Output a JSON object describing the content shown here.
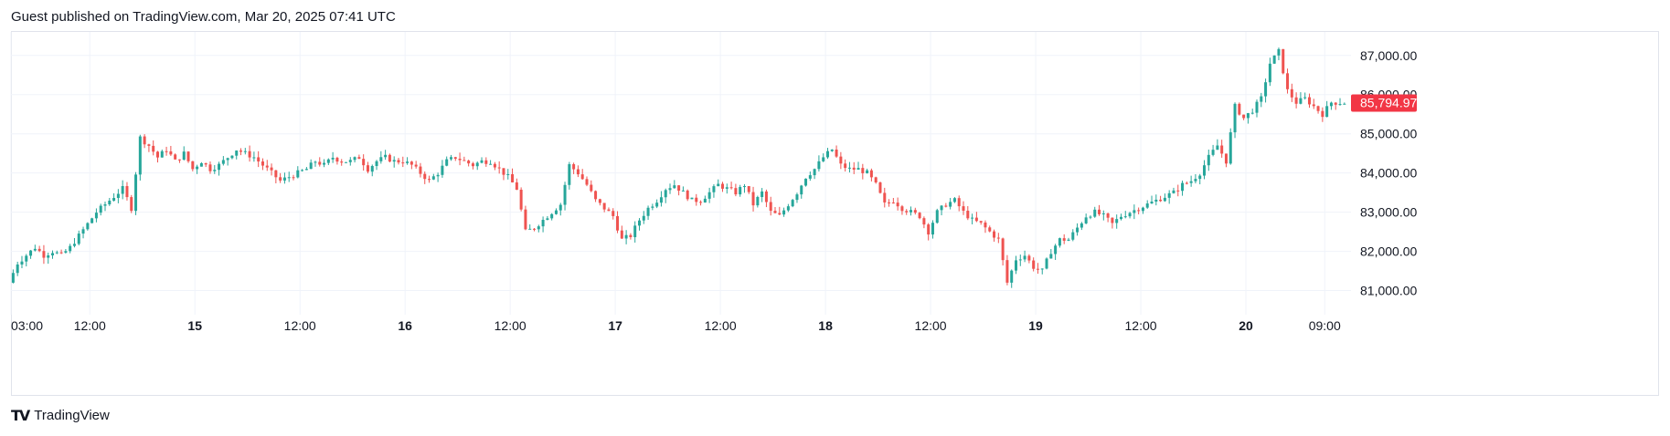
{
  "header": {
    "published": "Guest published on TradingView.com, Mar 20, 2025 07:41 UTC"
  },
  "footer": {
    "logo_glyph": "TV",
    "brand": "TradingView"
  },
  "colors": {
    "up": "#26a69a",
    "down": "#ef5350",
    "price_badge": "#f23645",
    "grid": "#f0f3fa",
    "border": "#e0e3eb"
  },
  "chart_data": {
    "type": "candlestick",
    "title": "",
    "xlabel": "",
    "ylabel": "",
    "ylim": [
      80500,
      87600
    ],
    "y_ticks": [
      "81,000.00",
      "82,000.00",
      "83,000.00",
      "84,000.00",
      "85,000.00",
      "86,000.00",
      "87,000.00"
    ],
    "y_tick_values": [
      81000,
      82000,
      83000,
      84000,
      85000,
      86000,
      87000
    ],
    "x_ticks": [
      {
        "label": "03:00",
        "t": 0,
        "bold": false
      },
      {
        "label": "12:00",
        "t": 9,
        "bold": false
      },
      {
        "label": "15",
        "t": 21,
        "bold": true
      },
      {
        "label": "12:00",
        "t": 33,
        "bold": false
      },
      {
        "label": "16",
        "t": 45,
        "bold": true
      },
      {
        "label": "12:00",
        "t": 57,
        "bold": false
      },
      {
        "label": "17",
        "t": 69,
        "bold": true
      },
      {
        "label": "12:00",
        "t": 81,
        "bold": false
      },
      {
        "label": "18",
        "t": 93,
        "bold": true
      },
      {
        "label": "12:00",
        "t": 105,
        "bold": false
      },
      {
        "label": "19",
        "t": 117,
        "bold": true
      },
      {
        "label": "12:00",
        "t": 129,
        "bold": false
      },
      {
        "label": "20",
        "t": 141,
        "bold": true
      },
      {
        "label": "09:00",
        "t": 150,
        "bold": false
      }
    ],
    "x_range_hours": [
      0,
      153
    ],
    "last_price": 85794.97,
    "last_price_label": "85,794.97",
    "close_path": [
      [
        0,
        81200
      ],
      [
        1,
        81700
      ],
      [
        2,
        81900
      ],
      [
        3,
        82100
      ],
      [
        4,
        81900
      ],
      [
        5,
        82000
      ],
      [
        6,
        81900
      ],
      [
        7,
        82100
      ],
      [
        8,
        82400
      ],
      [
        9,
        82700
      ],
      [
        10,
        83000
      ],
      [
        11,
        83200
      ],
      [
        12,
        83400
      ],
      [
        13,
        83600
      ],
      [
        14,
        83100
      ],
      [
        15,
        84900
      ],
      [
        16,
        84700
      ],
      [
        17,
        84400
      ],
      [
        18,
        84600
      ],
      [
        19,
        84300
      ],
      [
        20,
        84500
      ],
      [
        21,
        84100
      ],
      [
        22,
        84300
      ],
      [
        23,
        84100
      ],
      [
        24,
        84200
      ],
      [
        25,
        84400
      ],
      [
        26,
        84600
      ],
      [
        27,
        84500
      ],
      [
        28,
        84400
      ],
      [
        29,
        84200
      ],
      [
        30,
        84000
      ],
      [
        31,
        83800
      ],
      [
        32,
        83900
      ],
      [
        33,
        84000
      ],
      [
        34,
        84100
      ],
      [
        35,
        84300
      ],
      [
        36,
        84200
      ],
      [
        37,
        84400
      ],
      [
        38,
        84300
      ],
      [
        39,
        84300
      ],
      [
        40,
        84400
      ],
      [
        41,
        84100
      ],
      [
        42,
        84300
      ],
      [
        43,
        84400
      ],
      [
        44,
        84300
      ],
      [
        45,
        84300
      ],
      [
        46,
        84200
      ],
      [
        47,
        84000
      ],
      [
        48,
        83800
      ],
      [
        49,
        84000
      ],
      [
        50,
        84300
      ],
      [
        51,
        84400
      ],
      [
        52,
        84300
      ],
      [
        53,
        84200
      ],
      [
        54,
        84300
      ],
      [
        55,
        84300
      ],
      [
        56,
        84100
      ],
      [
        57,
        83900
      ],
      [
        58,
        83600
      ],
      [
        59,
        82500
      ],
      [
        60,
        82600
      ],
      [
        61,
        82800
      ],
      [
        62,
        83000
      ],
      [
        63,
        83200
      ],
      [
        64,
        84200
      ],
      [
        65,
        84000
      ],
      [
        66,
        83700
      ],
      [
        67,
        83300
      ],
      [
        68,
        83100
      ],
      [
        69,
        82900
      ],
      [
        70,
        82300
      ],
      [
        71,
        82400
      ],
      [
        72,
        82800
      ],
      [
        73,
        83100
      ],
      [
        74,
        83300
      ],
      [
        75,
        83600
      ],
      [
        76,
        83700
      ],
      [
        77,
        83500
      ],
      [
        78,
        83300
      ],
      [
        79,
        83300
      ],
      [
        80,
        83500
      ],
      [
        81,
        83700
      ],
      [
        82,
        83600
      ],
      [
        83,
        83500
      ],
      [
        84,
        83700
      ],
      [
        85,
        83200
      ],
      [
        86,
        83500
      ],
      [
        87,
        83000
      ],
      [
        88,
        82900
      ],
      [
        89,
        83200
      ],
      [
        90,
        83500
      ],
      [
        91,
        83900
      ],
      [
        92,
        84100
      ],
      [
        93,
        84400
      ],
      [
        94,
        84600
      ],
      [
        95,
        84200
      ],
      [
        96,
        84100
      ],
      [
        97,
        84100
      ],
      [
        98,
        84000
      ],
      [
        99,
        83700
      ],
      [
        100,
        83200
      ],
      [
        101,
        83300
      ],
      [
        102,
        83100
      ],
      [
        103,
        83000
      ],
      [
        104,
        82900
      ],
      [
        105,
        82500
      ],
      [
        106,
        83000
      ],
      [
        107,
        83200
      ],
      [
        108,
        83300
      ],
      [
        109,
        83000
      ],
      [
        110,
        82800
      ],
      [
        111,
        82700
      ],
      [
        112,
        82500
      ],
      [
        113,
        82300
      ],
      [
        114,
        81200
      ],
      [
        115,
        81800
      ],
      [
        116,
        81900
      ],
      [
        117,
        81600
      ],
      [
        118,
        81500
      ],
      [
        119,
        82000
      ],
      [
        120,
        82300
      ],
      [
        121,
        82300
      ],
      [
        122,
        82600
      ],
      [
        123,
        82900
      ],
      [
        124,
        83000
      ],
      [
        125,
        82900
      ],
      [
        126,
        82700
      ],
      [
        127,
        82900
      ],
      [
        128,
        83000
      ],
      [
        129,
        83100
      ],
      [
        130,
        83200
      ],
      [
        131,
        83300
      ],
      [
        132,
        83400
      ],
      [
        133,
        83500
      ],
      [
        134,
        83700
      ],
      [
        135,
        83800
      ],
      [
        136,
        84000
      ],
      [
        137,
        84400
      ],
      [
        138,
        84700
      ],
      [
        139,
        84300
      ],
      [
        140,
        85700
      ],
      [
        141,
        85400
      ],
      [
        142,
        85600
      ],
      [
        143,
        85900
      ],
      [
        144,
        86800
      ],
      [
        145,
        87100
      ],
      [
        146,
        86100
      ],
      [
        147,
        85800
      ],
      [
        148,
        85900
      ],
      [
        149,
        85700
      ],
      [
        150,
        85500
      ],
      [
        151,
        85800
      ],
      [
        152,
        85795
      ]
    ],
    "bars_per_hour": 2
  }
}
